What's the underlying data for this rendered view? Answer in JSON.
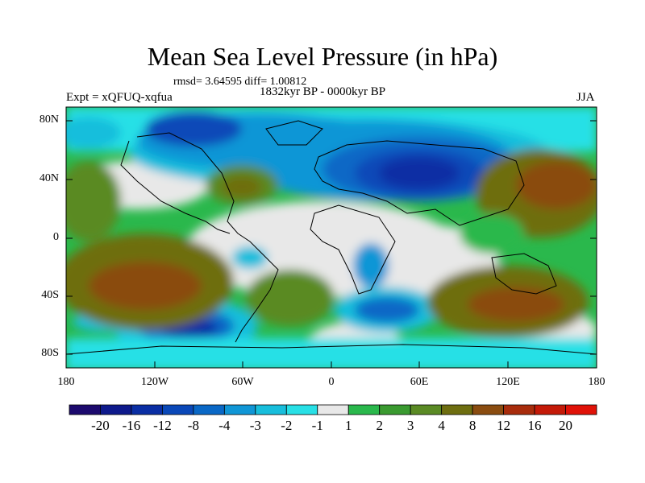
{
  "title": "Mean Sea Level Pressure (in hPa)",
  "stats": "rmsd= 3.64595 diff= 1.00812",
  "period": "1832kyr BP - 0000kyr BP",
  "experiment": "Expt = xQFUQ-xqfua",
  "season": "JJA",
  "lat_labels": [
    "80N",
    "40N",
    "0",
    "40S",
    "80S"
  ],
  "lon_labels": [
    "180",
    "120W",
    "60W",
    "0",
    "60E",
    "120E",
    "180"
  ],
  "colorbar": {
    "labels": [
      "-20",
      "-16",
      "-12",
      "-8",
      "-4",
      "-3",
      "-2",
      "-1",
      "1",
      "2",
      "3",
      "4",
      "8",
      "12",
      "16",
      "20"
    ],
    "colors": [
      "#1c0a6e",
      "#0e1a8c",
      "#0a2ea4",
      "#0a48b8",
      "#0a68c6",
      "#1096d6",
      "#18bedc",
      "#28e0e6",
      "#e8e8e8",
      "#2ab84c",
      "#3a9a30",
      "#5a8a24",
      "#6e6e10",
      "#8a4c10",
      "#a82c0c",
      "#c41a08",
      "#e01208"
    ]
  },
  "colors": {
    "ocean_positive": "#5a8a24",
    "strong_positive": "#8a4c10",
    "neutral": "#e8e8e8",
    "negative": "#1096d6",
    "strong_negative": "#0a2ea4"
  }
}
